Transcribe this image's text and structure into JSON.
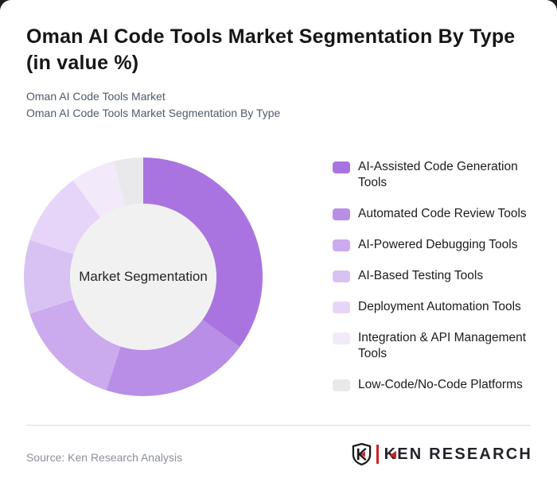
{
  "page": {
    "title": "Oman AI Code Tools Market Segmentation By Type (in value %)",
    "subtitle1": "Oman AI Code Tools Market",
    "subtitle2": "Oman AI Code Tools Market Segmentation By Type"
  },
  "chart_data": {
    "type": "pie",
    "variant": "donut",
    "title": "Oman AI Code Tools Market Segmentation By Type (in value %)",
    "center_label": "Market Segmentation",
    "categories": [
      "AI-Assisted Code Generation Tools",
      "Automated Code Review Tools",
      "AI-Powered Debugging Tools",
      "AI-Based Testing Tools",
      "Deployment Automation Tools",
      "Integration & API Management Tools",
      "Low-Code/No-Code Platforms"
    ],
    "values": [
      35,
      20,
      15,
      10,
      10,
      6,
      4
    ],
    "unit": "value %",
    "colors": [
      "#a974e0",
      "#b98ee6",
      "#cbaaee",
      "#d8c2f3",
      "#e6d5f8",
      "#f2e9fb",
      "#e9e9eb"
    ],
    "center_fill": "#f1f1f2",
    "start_angle_deg": 0,
    "direction": "clockwise",
    "inner_radius_ratio": 0.613,
    "legend_position": "right"
  },
  "footer": {
    "source": "Source: Ken Research Analysis",
    "logo": {
      "k": "K",
      "rest": "EN RESEARCH"
    },
    "logo_red": "#cb2026"
  }
}
